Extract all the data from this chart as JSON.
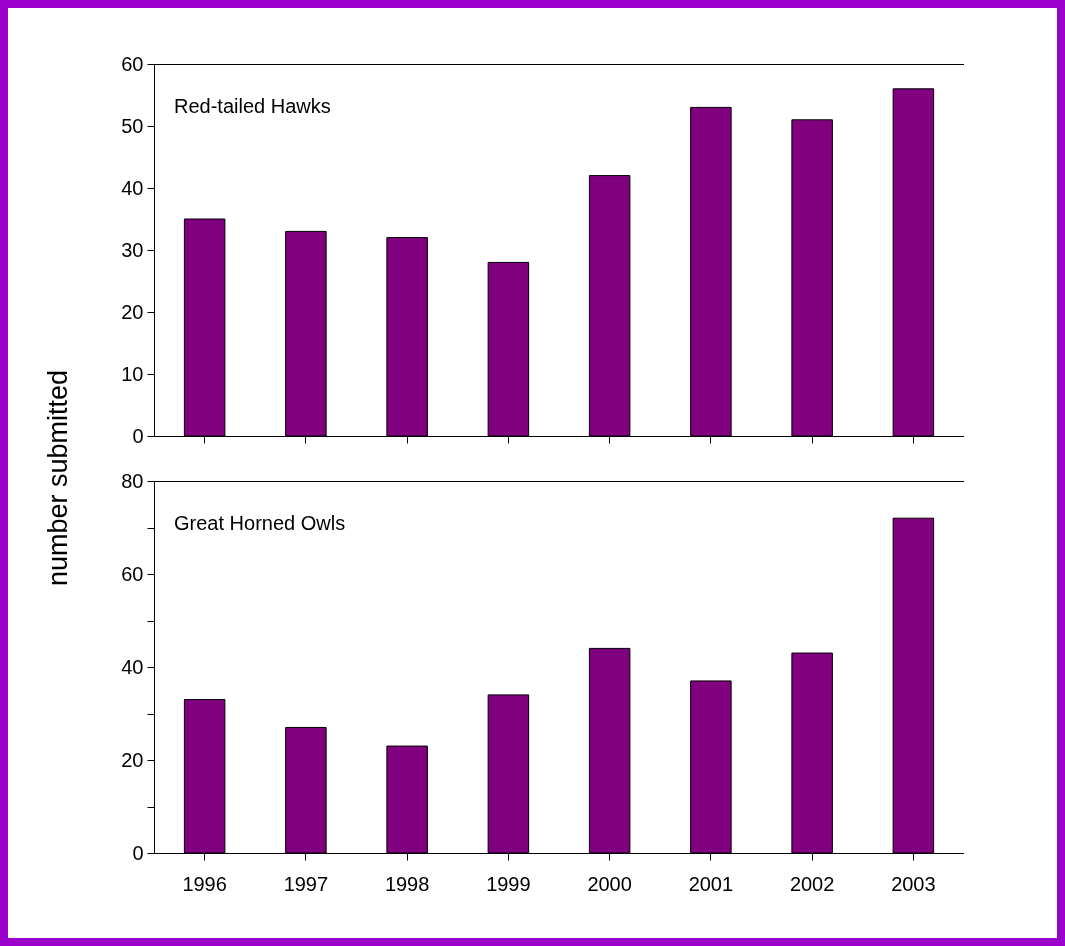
{
  "chart_data": [
    {
      "type": "bar",
      "title": "Red-tailed Hawks",
      "ylabel": "number submitted",
      "categories": [
        "1996",
        "1997",
        "1998",
        "1999",
        "2000",
        "2001",
        "2002",
        "2003"
      ],
      "values": [
        35,
        33,
        32,
        28,
        42,
        53,
        51,
        56
      ],
      "color": "#800080",
      "ylim": [
        0,
        60
      ],
      "yticks": [
        0,
        10,
        20,
        30,
        40,
        50,
        60
      ],
      "tick_labels": "y",
      "grid": false
    },
    {
      "type": "bar",
      "title": "Great Horned Owls",
      "categories": [
        "1996",
        "1997",
        "1998",
        "1999",
        "2000",
        "2001",
        "2002",
        "2003"
      ],
      "values": [
        33,
        27,
        23,
        34,
        44,
        37,
        43,
        72
      ],
      "color": "#800080",
      "ylim": [
        0,
        80
      ],
      "yticks": [
        0,
        {
          "value": 10,
          "label": null
        },
        20,
        {
          "value": 30,
          "label": null
        },
        40,
        {
          "value": 50,
          "label": null
        },
        60,
        {
          "value": 70,
          "label": null
        },
        80
      ],
      "grid": false
    }
  ]
}
